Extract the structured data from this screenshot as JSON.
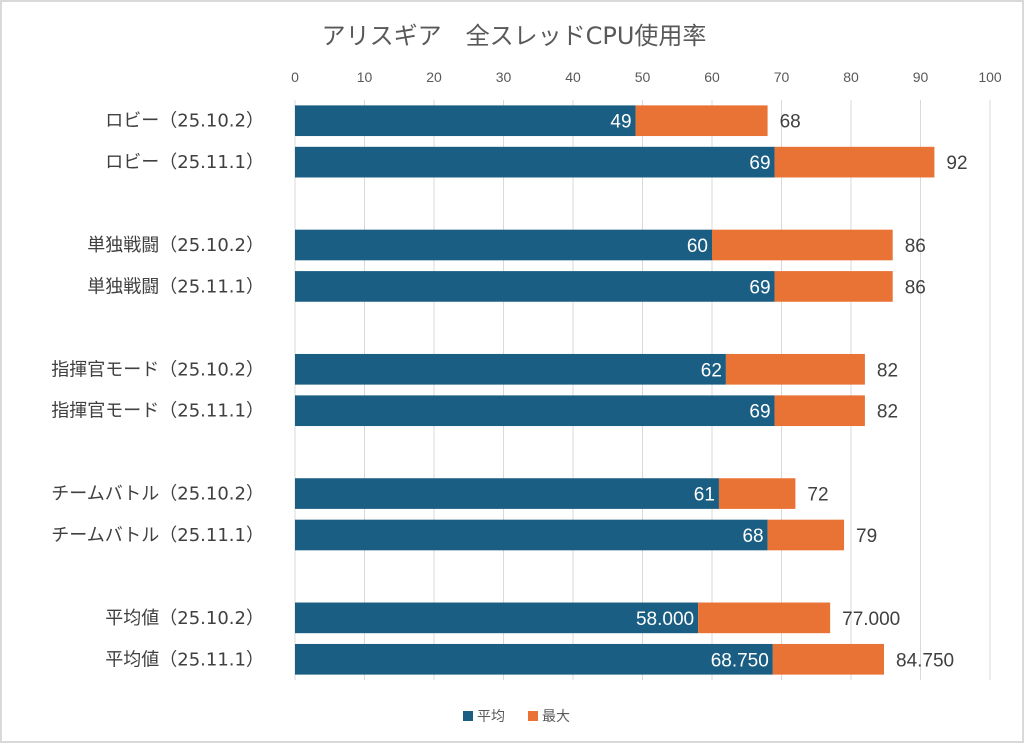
{
  "chart_data": {
    "type": "bar",
    "orientation": "horizontal",
    "title": "アリスギア　全スレッドCPU使用率",
    "xlabel": "",
    "ylabel": "",
    "xlim": [
      0,
      100
    ],
    "x_ticks": [
      "0",
      "10",
      "20",
      "30",
      "40",
      "50",
      "60",
      "70",
      "80",
      "90",
      "100"
    ],
    "grid": true,
    "legend_position": "bottom",
    "categories": [
      "ロビー（25.10.2）",
      "ロビー（25.11.1）",
      "",
      "単独戦闘（25.10.2）",
      "単独戦闘（25.11.1）",
      "",
      "指揮官モード（25.10.2）",
      "指揮官モード（25.11.1）",
      "",
      "チームバトル（25.10.2）",
      "チームバトル（25.11.1）",
      "",
      "平均値（25.10.2）",
      "平均値（25.11.1）"
    ],
    "series": [
      {
        "name": "平均",
        "color": "#1b5e83",
        "values": [
          49,
          69,
          null,
          60,
          69,
          null,
          62,
          69,
          null,
          61,
          68,
          null,
          58.0,
          68.75
        ],
        "labels": [
          "49",
          "69",
          "",
          "60",
          "69",
          "",
          "62",
          "69",
          "",
          "61",
          "68",
          "",
          "58.000",
          "68.750"
        ]
      },
      {
        "name": "最大",
        "color": "#e87334",
        "values": [
          68,
          92,
          null,
          86,
          86,
          null,
          82,
          82,
          null,
          72,
          79,
          null,
          77.0,
          84.75
        ],
        "labels": [
          "68",
          "92",
          "",
          "86",
          "86",
          "",
          "82",
          "82",
          "",
          "72",
          "79",
          "",
          "77.000",
          "84.750"
        ]
      }
    ]
  }
}
